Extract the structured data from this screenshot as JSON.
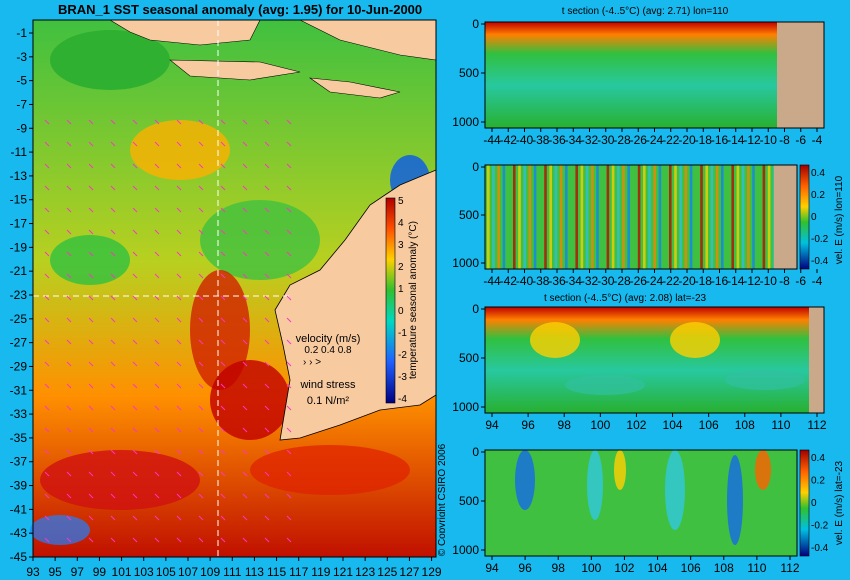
{
  "map": {
    "title": "BRAN_1 SST seasonal anomaly (avg: 1.95) for 10-Jun-2000",
    "lat_ticks": [
      "-1",
      "-3",
      "-5",
      "-7",
      "-9",
      "-11",
      "-13",
      "-15",
      "-17",
      "-19",
      "-21",
      "-23",
      "-25",
      "-27",
      "-29",
      "-31",
      "-33",
      "-35",
      "-37",
      "-39",
      "-41",
      "-43",
      "-45"
    ],
    "lon_ticks": [
      "93",
      "95",
      "97",
      "99",
      "101",
      "103",
      "105",
      "107",
      "109",
      "111",
      "113",
      "115",
      "117",
      "119",
      "121",
      "123",
      "125",
      "127",
      "129"
    ],
    "colorbar_label": "temperature seasonal anomaly (°C)",
    "colorbar_ticks": [
      "5",
      "4",
      "3",
      "2",
      "1",
      "0",
      "-1",
      "-2",
      "-3",
      "-4"
    ],
    "velocity_title": "velocity (m/s)",
    "velocity_values": "0.2 0.4 0.8",
    "wind_title": "wind stress",
    "wind_value": "0.1 N/m²",
    "copyright": "© Copyright CSIRO 2006",
    "colors": {
      "land": "#f7caa0",
      "ocean_bg": "#18b9ee",
      "hot": "#c40000",
      "cold": "#1040c0",
      "vector": "#ff33cc"
    }
  },
  "panels": [
    {
      "title": "t section (-4..5°C) (avg: 2.71) lon=110",
      "y_ticks": [
        "0",
        "500",
        "1000"
      ],
      "x_ticks": [
        "-44",
        "-42",
        "-40",
        "-38",
        "-36",
        "-34",
        "-32",
        "-30",
        "-28",
        "-26",
        "-24",
        "-22",
        "-20",
        "-18",
        "-16",
        "-14",
        "-12",
        "-10",
        "-8",
        "-6",
        "-4"
      ],
      "colorbar": false
    },
    {
      "title": "",
      "y_ticks": [
        "0",
        "500",
        "1000"
      ],
      "x_ticks": [
        "-44",
        "-42",
        "-40",
        "-38",
        "-36",
        "-34",
        "-32",
        "-30",
        "-28",
        "-26",
        "-24",
        "-22",
        "-20",
        "-18",
        "-16",
        "-14",
        "-12",
        "-10",
        "-8",
        "-6",
        "-4"
      ],
      "colorbar": true,
      "cb_label": "vel. E (m/s) lon=110",
      "cb_ticks": [
        "0.4",
        "0.2",
        "0",
        "-0.2",
        "-0.4"
      ]
    },
    {
      "title": "t section (-4..5°C) (avg: 2.08) lat=-23",
      "y_ticks": [
        "0",
        "500",
        "1000"
      ],
      "x_ticks": [
        "94",
        "96",
        "98",
        "100",
        "102",
        "104",
        "106",
        "108",
        "110",
        "112"
      ],
      "colorbar": false
    },
    {
      "title": "",
      "y_ticks": [
        "0",
        "500",
        "1000"
      ],
      "x_ticks": [
        "94",
        "96",
        "98",
        "100",
        "102",
        "104",
        "106",
        "108",
        "110",
        "112"
      ],
      "colorbar": true,
      "cb_label": "vel. E (m/s) lat=-23",
      "cb_ticks": [
        "0.4",
        "0.2",
        "0",
        "-0.2",
        "-0.4"
      ]
    }
  ],
  "chart_data": [
    {
      "type": "heatmap",
      "title": "BRAN_1 SST seasonal anomaly (avg: 1.95) for 10-Jun-2000",
      "x_range": [
        93,
        130
      ],
      "y_range": [
        -45,
        0
      ],
      "value_range": [
        -4,
        5
      ],
      "mean": 1.95,
      "colorbar_label": "temperature seasonal anomaly (°C)"
    },
    {
      "type": "heatmap",
      "title": "t section (-4..5°C) (avg: 2.71) lon=110",
      "x_range": [
        -45,
        -3
      ],
      "y_range": [
        1050,
        0
      ],
      "value_range": [
        -4,
        5
      ],
      "mean": 2.71
    },
    {
      "type": "heatmap",
      "title": "",
      "x_range": [
        -45,
        -3
      ],
      "y_range": [
        1050,
        0
      ],
      "value_range": [
        -0.4,
        0.4
      ],
      "colorbar_label": "vel. E (m/s) lon=110"
    },
    {
      "type": "heatmap",
      "title": "t section (-4..5°C) (avg: 2.08) lat=-23",
      "x_range": [
        93,
        114
      ],
      "y_range": [
        1050,
        0
      ],
      "value_range": [
        -4,
        5
      ],
      "mean": 2.08
    },
    {
      "type": "heatmap",
      "title": "",
      "x_range": [
        93,
        114
      ],
      "y_range": [
        1050,
        0
      ],
      "value_range": [
        -0.4,
        0.4
      ],
      "colorbar_label": "vel. E (m/s) lat=-23"
    }
  ]
}
